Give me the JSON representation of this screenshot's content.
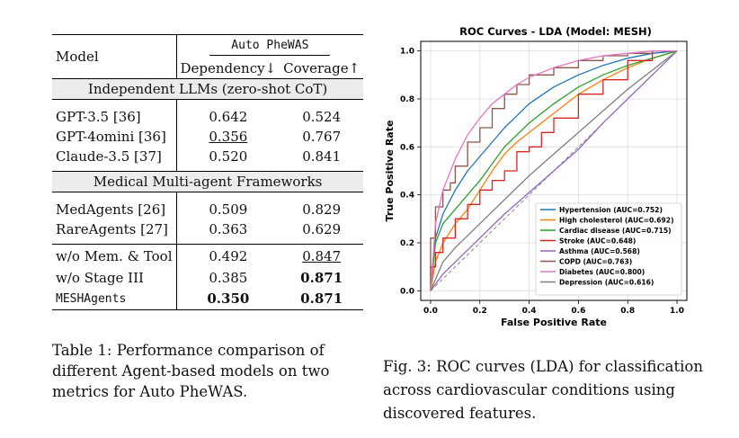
{
  "table": {
    "header": {
      "model": "Model",
      "group": "Auto PheWAS",
      "col1": "Dependency↓",
      "col2": "Coverage↑"
    },
    "sections": [
      {
        "title": "Independent LLMs (zero-shot CoT)",
        "rows": [
          {
            "model": "GPT-3.5 [36]",
            "dep": "0.642",
            "cov": "0.524"
          },
          {
            "model": "GPT-4omini [36]",
            "dep": "0.356",
            "cov": "0.767"
          },
          {
            "model": "Claude-3.5 [37]",
            "dep": "0.520",
            "cov": "0.841"
          }
        ]
      },
      {
        "title": "Medical Multi-agent Frameworks",
        "rows": [
          {
            "model": "MedAgents [26]",
            "dep": "0.509",
            "cov": "0.829"
          },
          {
            "model": "RareAgents [27]",
            "dep": "0.363",
            "cov": "0.629"
          }
        ]
      }
    ],
    "ablation": [
      {
        "model": "w/o Mem. & Tool",
        "dep": "0.492",
        "cov": "0.847"
      },
      {
        "model": "w/o Stage III",
        "dep": "0.385",
        "cov": "0.871"
      },
      {
        "model": "MESHAgents",
        "dep": "0.350",
        "cov": "0.871"
      }
    ],
    "caption": "Table 1: Performance comparison of different Agent-based models on two metrics for Auto PheWAS."
  },
  "figure": {
    "caption": "Fig. 3: ROC curves (LDA) for classification across cardiovascular conditions using discovered features."
  },
  "chart_data": {
    "type": "line",
    "title": "ROC Curves - LDA (Model: MESH)",
    "xlabel": "False Positive Rate",
    "ylabel": "True Positive Rate",
    "xlim": [
      -0.04,
      1.04
    ],
    "ylim": [
      -0.04,
      1.04
    ],
    "xticks": [
      "0.0",
      "0.2",
      "0.4",
      "0.6",
      "0.8",
      "1.0"
    ],
    "yticks": [
      "0.0",
      "0.2",
      "0.4",
      "0.6",
      "0.8",
      "1.0"
    ],
    "grid": true,
    "legend_position": "lower-right",
    "diagonal": true,
    "series": [
      {
        "name": "Hypertension (AUC=0.752)",
        "color": "#1f77b4",
        "step": false,
        "x": [
          0,
          0.02,
          0.05,
          0.1,
          0.15,
          0.2,
          0.25,
          0.3,
          0.35,
          0.4,
          0.5,
          0.6,
          0.7,
          0.8,
          0.9,
          1.0
        ],
        "y": [
          0,
          0.22,
          0.32,
          0.42,
          0.5,
          0.56,
          0.62,
          0.68,
          0.73,
          0.78,
          0.85,
          0.9,
          0.94,
          0.97,
          0.99,
          1.0
        ]
      },
      {
        "name": "High cholesterol (AUC=0.692)",
        "color": "#ff7f0e",
        "step": false,
        "x": [
          0,
          0.02,
          0.05,
          0.1,
          0.15,
          0.2,
          0.25,
          0.3,
          0.35,
          0.4,
          0.5,
          0.6,
          0.7,
          0.8,
          0.9,
          1.0
        ],
        "y": [
          0,
          0.12,
          0.2,
          0.28,
          0.34,
          0.42,
          0.5,
          0.57,
          0.62,
          0.66,
          0.74,
          0.82,
          0.88,
          0.93,
          0.97,
          1.0
        ]
      },
      {
        "name": "Cardiac disease (AUC=0.715)",
        "color": "#2ca02c",
        "step": false,
        "x": [
          0,
          0.02,
          0.05,
          0.1,
          0.15,
          0.2,
          0.25,
          0.3,
          0.35,
          0.4,
          0.5,
          0.6,
          0.7,
          0.8,
          0.9,
          1.0
        ],
        "y": [
          0,
          0.2,
          0.28,
          0.34,
          0.4,
          0.46,
          0.53,
          0.6,
          0.65,
          0.7,
          0.78,
          0.85,
          0.9,
          0.94,
          0.97,
          1.0
        ]
      },
      {
        "name": "Stroke (AUC=0.648)",
        "color": "#d62728",
        "step": true,
        "x": [
          0,
          0.02,
          0.05,
          0.1,
          0.15,
          0.2,
          0.25,
          0.3,
          0.35,
          0.4,
          0.45,
          0.5,
          0.6,
          0.7,
          0.8,
          0.9,
          1.0
        ],
        "y": [
          0,
          0.1,
          0.16,
          0.22,
          0.3,
          0.36,
          0.42,
          0.46,
          0.5,
          0.58,
          0.6,
          0.66,
          0.72,
          0.82,
          0.88,
          0.96,
          1.0
        ]
      },
      {
        "name": "Asthma (AUC=0.568)",
        "color": "#9467bd",
        "step": false,
        "x": [
          0,
          0.05,
          0.1,
          0.2,
          0.3,
          0.4,
          0.5,
          0.6,
          0.7,
          0.8,
          0.9,
          1.0
        ],
        "y": [
          0,
          0.07,
          0.12,
          0.22,
          0.32,
          0.41,
          0.5,
          0.59,
          0.7,
          0.8,
          0.9,
          1.0
        ]
      },
      {
        "name": "COPD (AUC=0.763)",
        "color": "#8c564b",
        "step": true,
        "x": [
          0,
          0.02,
          0.05,
          0.08,
          0.1,
          0.15,
          0.2,
          0.25,
          0.3,
          0.35,
          0.4,
          0.5,
          0.6,
          0.7,
          0.8,
          0.9,
          1.0
        ],
        "y": [
          0,
          0.22,
          0.35,
          0.42,
          0.45,
          0.52,
          0.62,
          0.68,
          0.76,
          0.82,
          0.86,
          0.9,
          0.93,
          0.96,
          0.98,
          0.99,
          1.0
        ]
      },
      {
        "name": "Diabetes (AUC=0.800)",
        "color": "#e377c2",
        "step": false,
        "x": [
          0,
          0.02,
          0.05,
          0.1,
          0.15,
          0.2,
          0.25,
          0.3,
          0.35,
          0.4,
          0.5,
          0.6,
          0.7,
          0.8,
          0.9,
          1.0
        ],
        "y": [
          0,
          0.28,
          0.42,
          0.55,
          0.65,
          0.72,
          0.78,
          0.82,
          0.86,
          0.89,
          0.93,
          0.96,
          0.98,
          0.99,
          1.0,
          1.0
        ]
      },
      {
        "name": "Depression (AUC=0.616)",
        "color": "#7f7f7f",
        "step": false,
        "x": [
          0,
          0.05,
          0.1,
          0.2,
          0.3,
          0.4,
          0.5,
          0.6,
          0.7,
          0.8,
          0.9,
          1.0
        ],
        "y": [
          0,
          0.12,
          0.18,
          0.28,
          0.38,
          0.48,
          0.57,
          0.66,
          0.75,
          0.84,
          0.92,
          1.0
        ]
      }
    ]
  }
}
